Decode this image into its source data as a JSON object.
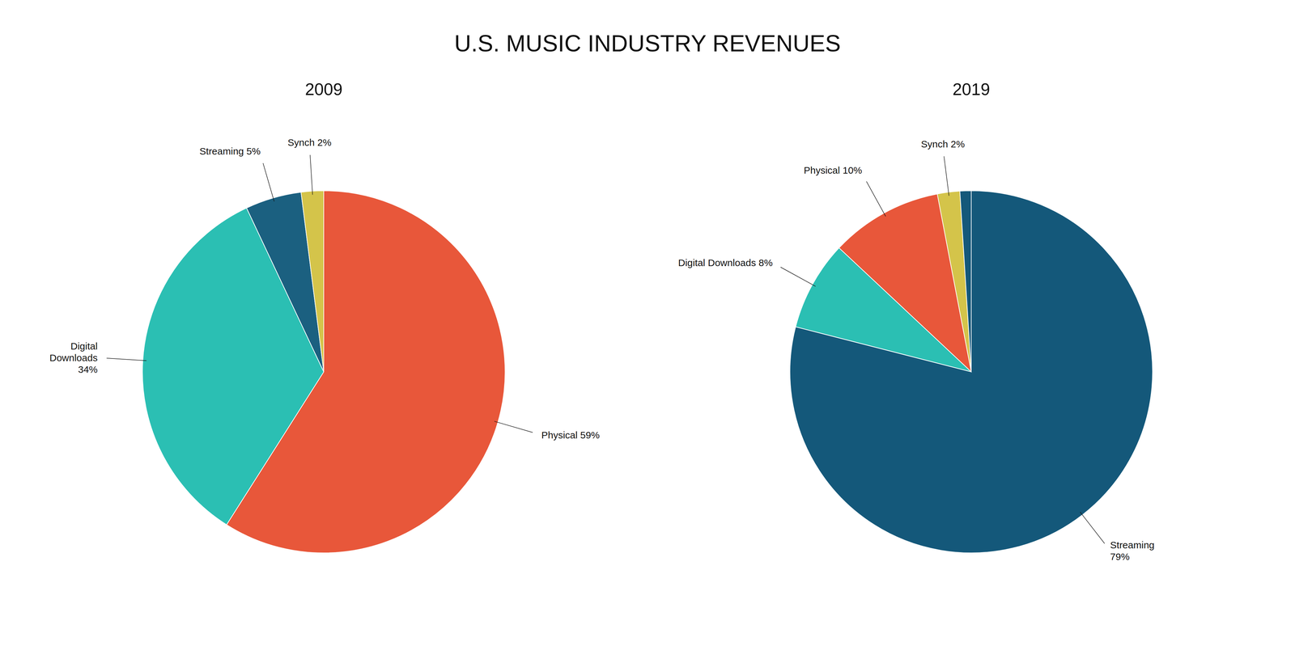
{
  "title": "U.S. MUSIC INDUSTRY REVENUES",
  "chart_data": [
    {
      "type": "pie",
      "title": "2009",
      "values": [
        59,
        34,
        5,
        2
      ],
      "colors": [
        "#E8573A",
        "#2BBFB3",
        "#1B6080",
        "#D4C44A"
      ],
      "annotations": [
        "Physical 59%",
        "Digital\nDownloads\n34%",
        "Streaming 5%",
        "Synch 2%"
      ]
    },
    {
      "type": "pie",
      "title": "2019",
      "values": [
        79,
        8,
        10,
        2,
        1
      ],
      "colors": [
        "#14587A",
        "#2BBFB3",
        "#E8573A",
        "#D4C44A",
        "#14587A"
      ],
      "annotations": [
        "Streaming\n79%",
        "Digital Downloads 8%",
        "Physical 10%",
        "Synch 2%",
        null
      ]
    }
  ]
}
